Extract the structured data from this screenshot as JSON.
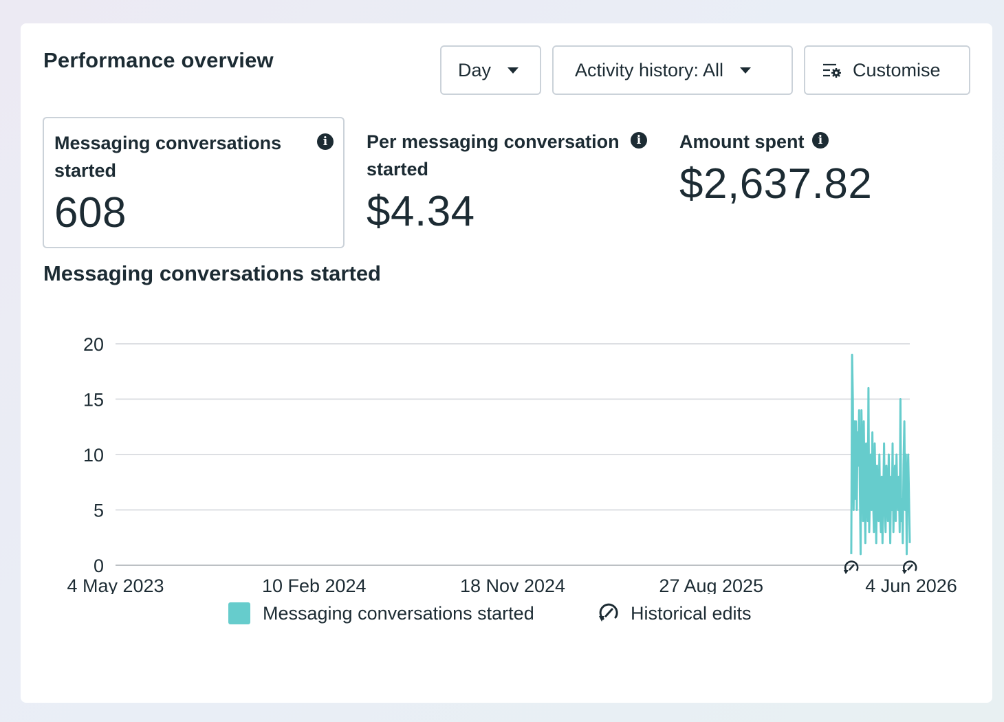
{
  "header": {
    "title": "Performance overview",
    "day_label": "Day",
    "activity_label": "Activity history: All",
    "customise_label": "Customise"
  },
  "metrics": [
    {
      "label": "Messaging conversations started",
      "value": "608"
    },
    {
      "label": "Per messaging conversation started",
      "value": "$4.34"
    },
    {
      "label": "Amount spent",
      "value": "$2,637.82"
    }
  ],
  "icons": {
    "info": "info-icon",
    "caret": "caret-down-icon",
    "customise": "customise-icon",
    "historical_edit": "historical-edit-icon"
  },
  "colors": {
    "series": "#66cccc",
    "text": "#1c2b33",
    "grid": "#dddfe3",
    "border": "#cbd2d9"
  },
  "chart_data": {
    "type": "line",
    "title": "Messaging conversations started",
    "xlabel": "",
    "ylabel": "",
    "ylim": [
      0,
      20
    ],
    "yticks": [
      "0",
      "5",
      "10",
      "15",
      "20"
    ],
    "xlim": [
      "2023-05-04",
      "2026-06-04"
    ],
    "xtick_labels": [
      "4 May 2023",
      "10 Feb 2024",
      "18 Nov 2024",
      "27 Aug 2025",
      "4 Jun 2026"
    ],
    "grid": true,
    "legend": "bottom",
    "series": [
      {
        "name": "Messaging conversations started",
        "x_start": "2026-03-13",
        "x_end": "2026-06-04",
        "values": [
          1,
          19,
          15,
          5,
          13,
          6,
          13,
          5,
          12,
          9,
          14,
          7,
          1,
          14,
          10,
          4,
          13,
          7,
          2,
          11,
          8,
          4,
          16,
          3,
          7,
          10,
          5,
          12,
          6,
          3,
          11,
          7,
          2,
          9,
          6,
          4,
          10,
          5,
          3,
          8,
          2,
          6,
          11,
          5,
          3,
          9,
          7,
          4,
          10,
          6,
          2,
          8,
          5,
          11,
          3,
          7,
          9,
          4,
          10,
          6,
          5,
          8,
          3,
          15,
          4,
          6,
          2,
          9,
          13,
          5,
          10,
          1,
          7,
          10,
          6,
          2
        ]
      },
      {
        "name": "Historical edits",
        "marker_dates": [
          "2026-03-13",
          "2026-06-04"
        ]
      }
    ]
  },
  "legend": {
    "series_label": "Messaging conversations started",
    "edits_label": "Historical edits"
  }
}
